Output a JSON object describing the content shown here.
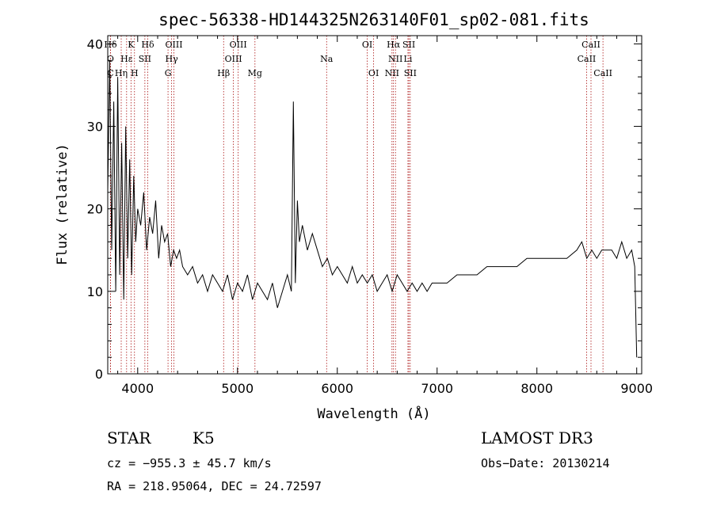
{
  "chart_data": {
    "type": "line",
    "title": "spec-56338-HD144325N263140F01_sp02-081.fits",
    "xlabel": "Wavelength (Å)",
    "ylabel": "Flux (relative)",
    "xlim": [
      3700,
      9050
    ],
    "ylim": [
      0,
      41
    ],
    "x_ticks": [
      4000,
      5000,
      6000,
      7000,
      8000,
      9000
    ],
    "y_ticks": [
      0,
      10,
      20,
      30,
      40
    ],
    "grid": false,
    "series": [
      {
        "x": [
          3700,
          3720,
          3740,
          3760,
          3780,
          3800,
          3820,
          3840,
          3860,
          3880,
          3900,
          3920,
          3940,
          3960,
          3980,
          4000,
          4030,
          4060,
          4090,
          4120,
          4150,
          4180,
          4210,
          4240,
          4270,
          4300,
          4330,
          4360,
          4390,
          4420,
          4450,
          4500,
          4550,
          4600,
          4650,
          4700,
          4750,
          4800,
          4850,
          4900,
          4950,
          5000,
          5050,
          5100,
          5150,
          5200,
          5250,
          5300,
          5350,
          5400,
          5450,
          5500,
          5540,
          5560,
          5580,
          5600,
          5620,
          5650,
          5700,
          5750,
          5800,
          5850,
          5900,
          5950,
          6000,
          6050,
          6100,
          6150,
          6200,
          6250,
          6300,
          6350,
          6400,
          6450,
          6500,
          6550,
          6600,
          6650,
          6700,
          6750,
          6800,
          6850,
          6900,
          6950,
          7000,
          7100,
          7200,
          7300,
          7400,
          7500,
          7600,
          7700,
          7800,
          7900,
          8000,
          8100,
          8200,
          8300,
          8400,
          8450,
          8500,
          8550,
          8600,
          8650,
          8700,
          8750,
          8800,
          8850,
          8900,
          8950,
          8980,
          9000
        ],
        "y": [
          22,
          38,
          15,
          33,
          10,
          36,
          12,
          28,
          9,
          30,
          14,
          26,
          12,
          24,
          16,
          20,
          18,
          22,
          15,
          19,
          17,
          21,
          14,
          18,
          16,
          17,
          13,
          15,
          14,
          15,
          13,
          12,
          13,
          11,
          12,
          10,
          12,
          11,
          10,
          12,
          9,
          11,
          10,
          12,
          9,
          11,
          10,
          9,
          11,
          8,
          10,
          12,
          10,
          33,
          11,
          21,
          16,
          18,
          15,
          17,
          15,
          13,
          14,
          12,
          13,
          12,
          11,
          13,
          11,
          12,
          11,
          12,
          10,
          11,
          12,
          10,
          12,
          11,
          10,
          11,
          10,
          11,
          10,
          11,
          11,
          11,
          12,
          12,
          12,
          13,
          13,
          13,
          13,
          14,
          14,
          14,
          14,
          14,
          15,
          16,
          14,
          15,
          14,
          15,
          15,
          15,
          14,
          16,
          14,
          15,
          13,
          2
        ]
      }
    ],
    "spectral_lines": [
      {
        "label": "Hδ",
        "x": 3728,
        "row": 0
      },
      {
        "label": "K",
        "x": 3933,
        "row": 0
      },
      {
        "label": "Hδ",
        "x": 4101,
        "row": 0
      },
      {
        "label": "OIII",
        "x": 4363,
        "row": 0
      },
      {
        "label": "OIII",
        "x": 5007,
        "row": 0
      },
      {
        "label": "OI",
        "x": 6300,
        "row": 0
      },
      {
        "label": "Hα",
        "x": 6563,
        "row": 0
      },
      {
        "label": "SII",
        "x": 6717,
        "row": 0
      },
      {
        "label": "CaII",
        "x": 8542,
        "row": 0
      },
      {
        "label": "O",
        "x": 3727,
        "row": 1
      },
      {
        "label": "Hε",
        "x": 3889,
        "row": 1
      },
      {
        "label": "SII",
        "x": 4072,
        "row": 1
      },
      {
        "label": "Hγ",
        "x": 4340,
        "row": 1
      },
      {
        "label": "OIII",
        "x": 4959,
        "row": 1
      },
      {
        "label": "Na",
        "x": 5893,
        "row": 1
      },
      {
        "label": "NII",
        "x": 6583,
        "row": 1
      },
      {
        "label": "Li",
        "x": 6708,
        "row": 1
      },
      {
        "label": "CaII",
        "x": 8498,
        "row": 1
      },
      {
        "label": "C",
        "x": 3727,
        "row": 2
      },
      {
        "label": "Hη",
        "x": 3835,
        "row": 2
      },
      {
        "label": "H",
        "x": 3968,
        "row": 2
      },
      {
        "label": "G",
        "x": 4304,
        "row": 2
      },
      {
        "label": "Hβ",
        "x": 4861,
        "row": 2
      },
      {
        "label": "Mg",
        "x": 5175,
        "row": 2
      },
      {
        "label": "OI",
        "x": 6364,
        "row": 2
      },
      {
        "label": "NII",
        "x": 6548,
        "row": 2
      },
      {
        "label": "SII",
        "x": 6731,
        "row": 2
      },
      {
        "label": "CaII",
        "x": 8662,
        "row": 2
      }
    ],
    "line_color": "#000000",
    "marker_color": "#aa1111"
  },
  "info": {
    "class": "STAR",
    "subclass": "K5",
    "survey": "LAMOST DR3",
    "cz": "cz = −955.3 ± 45.7 km/s",
    "obs_date": "Obs−Date: 20130214",
    "coords": "RA = 218.95064, DEC =  24.72597"
  }
}
